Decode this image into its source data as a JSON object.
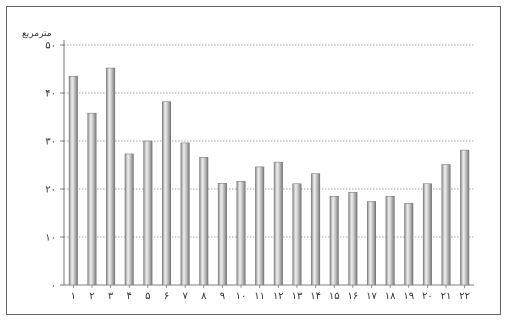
{
  "chart_data": {
    "type": "bar",
    "title": "",
    "xlabel": "",
    "ylabel": "مترمربع",
    "ylim": [
      0,
      50
    ],
    "y_ticks": [
      0,
      10,
      20,
      30,
      40,
      50
    ],
    "y_tick_labels": [
      "۰",
      "۱۰",
      "۲۰",
      "۳۰",
      "۴۰",
      "۵۰"
    ],
    "categories": [
      "۱",
      "۲",
      "۳",
      "۴",
      "۵",
      "۶",
      "۷",
      "۸",
      "۹",
      "۱۰",
      "۱۱",
      "۱۲",
      "۱۳",
      "۱۴",
      "۱۵",
      "۱۶",
      "۱۷",
      "۱۸",
      "۱۹",
      "۲۰",
      "۲۱",
      "۲۲"
    ],
    "values": [
      43.5,
      35.8,
      45.2,
      27.3,
      30.0,
      38.2,
      29.6,
      26.6,
      21.2,
      21.6,
      24.6,
      25.6,
      21.1,
      23.2,
      18.5,
      19.3,
      17.4,
      18.5,
      17.0,
      21.1,
      25.1,
      28.1
    ],
    "grid": true,
    "colors": {
      "bar_light": "#f2f2f2",
      "bar_mid": "#b8b8b8",
      "bar_dark": "#7a7a7a",
      "grid": "#8a8a8a",
      "axis": "#555555"
    }
  }
}
